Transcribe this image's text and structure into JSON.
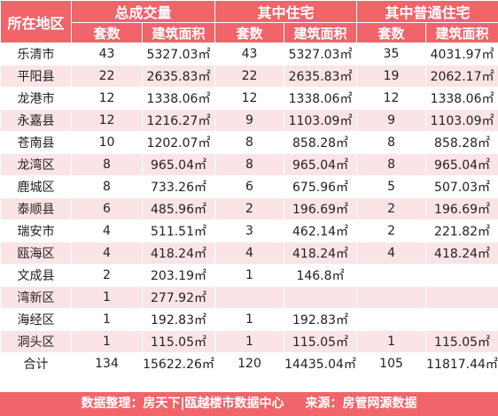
{
  "header": {
    "region": "所在地区",
    "groups": [
      "总成交量",
      "其中住宅",
      "其中普通住宅"
    ],
    "sub": [
      "套数",
      "建筑面积",
      "套数",
      "建筑面积",
      "套数",
      "建筑面积"
    ]
  },
  "rows": [
    {
      "region": "乐清市",
      "c": [
        "43",
        "5327.03㎡",
        "43",
        "5327.03㎡",
        "35",
        "4031.97㎡"
      ]
    },
    {
      "region": "平阳县",
      "c": [
        "22",
        "2635.83㎡",
        "22",
        "2635.83㎡",
        "19",
        "2062.17㎡"
      ]
    },
    {
      "region": "龙港市",
      "c": [
        "12",
        "1338.06㎡",
        "12",
        "1338.06㎡",
        "12",
        "1338.06㎡"
      ]
    },
    {
      "region": "永嘉县",
      "c": [
        "12",
        "1216.27㎡",
        "9",
        "1103.09㎡",
        "9",
        "1103.09㎡"
      ]
    },
    {
      "region": "苍南县",
      "c": [
        "10",
        "1202.07㎡",
        "8",
        "858.28㎡",
        "8",
        "858.28㎡"
      ]
    },
    {
      "region": "龙湾区",
      "c": [
        "8",
        "965.04㎡",
        "8",
        "965.04㎡",
        "8",
        "965.04㎡"
      ]
    },
    {
      "region": "鹿城区",
      "c": [
        "8",
        "733.26㎡",
        "6",
        "675.96㎡",
        "5",
        "507.03㎡"
      ]
    },
    {
      "region": "泰顺县",
      "c": [
        "6",
        "485.96㎡",
        "2",
        "196.69㎡",
        "2",
        "196.69㎡"
      ]
    },
    {
      "region": "瑞安市",
      "c": [
        "4",
        "511.51㎡",
        "3",
        "462.14㎡",
        "2",
        "221.82㎡"
      ]
    },
    {
      "region": "瓯海区",
      "c": [
        "4",
        "418.24㎡",
        "4",
        "418.24㎡",
        "4",
        "418.24㎡"
      ]
    },
    {
      "region": "文成县",
      "c": [
        "2",
        "203.19㎡",
        "1",
        "146.8㎡",
        "",
        ""
      ]
    },
    {
      "region": "湾新区",
      "c": [
        "1",
        "277.92㎡",
        "",
        "",
        "",
        ""
      ]
    },
    {
      "region": "海经区",
      "c": [
        "1",
        "192.83㎡",
        "1",
        "192.83㎡",
        "",
        ""
      ]
    },
    {
      "region": "洞头区",
      "c": [
        "1",
        "115.05㎡",
        "1",
        "115.05㎡",
        "1",
        "115.05㎡"
      ]
    }
  ],
  "total": {
    "region": "合计",
    "c": [
      "134",
      "15622.26㎡",
      "120",
      "14435.04㎡",
      "105",
      "11817.44㎡"
    ]
  },
  "footer": {
    "left": "数据整理：房天下|瓯越楼市数据中心",
    "right": "来源：房管网源数据"
  },
  "colors": {
    "header_bg": "#f0646a",
    "stripe_bg": "#fbe4e6"
  }
}
